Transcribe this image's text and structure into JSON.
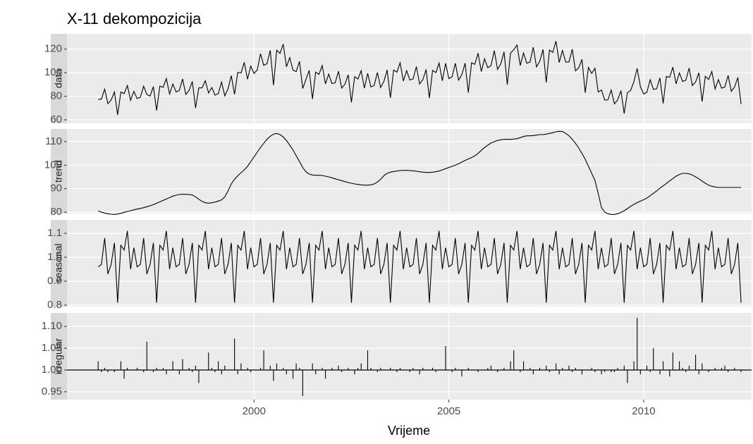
{
  "chart_data": {
    "type": "facets",
    "title": "X-11 dekompozicija",
    "x_label": "Vrijeme",
    "xlim": [
      1995.2,
      2012.77
    ],
    "xticks": [
      2000,
      2005,
      2010
    ],
    "grid": true,
    "color": "#000000",
    "panel_color": "#ebebeb",
    "strip_color": "#d9d9d9",
    "x": [
      1996,
      1996.083,
      1996.167,
      1996.25,
      1996.333,
      1996.417,
      1996.5,
      1996.583,
      1996.667,
      1996.75,
      1996.833,
      1996.917,
      1997,
      1997.083,
      1997.167,
      1997.25,
      1997.333,
      1997.417,
      1997.5,
      1997.583,
      1997.667,
      1997.75,
      1997.833,
      1997.917,
      1998,
      1998.083,
      1998.167,
      1998.25,
      1998.333,
      1998.417,
      1998.5,
      1998.583,
      1998.667,
      1998.75,
      1998.833,
      1998.917,
      1999,
      1999.083,
      1999.167,
      1999.25,
      1999.333,
      1999.417,
      1999.5,
      1999.583,
      1999.667,
      1999.75,
      1999.833,
      1999.917,
      2000,
      2000.083,
      2000.167,
      2000.25,
      2000.333,
      2000.417,
      2000.5,
      2000.583,
      2000.667,
      2000.75,
      2000.833,
      2000.917,
      2001,
      2001.083,
      2001.167,
      2001.25,
      2001.333,
      2001.417,
      2001.5,
      2001.583,
      2001.667,
      2001.75,
      2001.833,
      2001.917,
      2002,
      2002.083,
      2002.167,
      2002.25,
      2002.333,
      2002.417,
      2002.5,
      2002.583,
      2002.667,
      2002.75,
      2002.833,
      2002.917,
      2003,
      2003.083,
      2003.167,
      2003.25,
      2003.333,
      2003.417,
      2003.5,
      2003.583,
      2003.667,
      2003.75,
      2003.833,
      2003.917,
      2004,
      2004.083,
      2004.167,
      2004.25,
      2004.333,
      2004.417,
      2004.5,
      2004.583,
      2004.667,
      2004.75,
      2004.833,
      2004.917,
      2005,
      2005.083,
      2005.167,
      2005.25,
      2005.333,
      2005.417,
      2005.5,
      2005.583,
      2005.667,
      2005.75,
      2005.833,
      2005.917,
      2006,
      2006.083,
      2006.167,
      2006.25,
      2006.333,
      2006.417,
      2006.5,
      2006.583,
      2006.667,
      2006.75,
      2006.833,
      2006.917,
      2007,
      2007.083,
      2007.167,
      2007.25,
      2007.333,
      2007.417,
      2007.5,
      2007.583,
      2007.667,
      2007.75,
      2007.833,
      2007.917,
      2008,
      2008.083,
      2008.167,
      2008.25,
      2008.333,
      2008.417,
      2008.5,
      2008.583,
      2008.667,
      2008.75,
      2008.833,
      2008.917,
      2009,
      2009.083,
      2009.167,
      2009.25,
      2009.333,
      2009.417,
      2009.5,
      2009.583,
      2009.667,
      2009.75,
      2009.833,
      2009.917,
      2010,
      2010.083,
      2010.167,
      2010.25,
      2010.333,
      2010.417,
      2010.5,
      2010.583,
      2010.667,
      2010.75,
      2010.833,
      2010.917,
      2011,
      2011.083,
      2011.167,
      2011.25,
      2011.333,
      2011.417,
      2011.5,
      2011.583,
      2011.667,
      2011.75,
      2011.833,
      2011.917,
      2012,
      2012.083,
      2012.167,
      2012.25,
      2012.333,
      2012.417,
      2012.5
    ],
    "facets": [
      {
        "name": "data",
        "type": "line",
        "ylim": [
          57,
          133
        ],
        "yticks": [
          60,
          80,
          100,
          120
        ],
        "values": [
          77.3,
          77.6,
          86.0,
          73.7,
          76.7,
          83.7,
          64.2,
          83.5,
          82.3,
          89.1,
          76.6,
          84.2,
          78.0,
          79.2,
          88.5,
          81.5,
          80.2,
          88.2,
          67.9,
          88.6,
          87.6,
          95.0,
          81.9,
          90.3,
          83.7,
          84.9,
          94.6,
          81.5,
          84.9,
          92.5,
          70.1,
          87.1,
          87.1,
          93.2,
          82.8,
          87.4,
          80.9,
          82.2,
          92.0,
          80.4,
          86.3,
          97.5,
          81.6,
          100.3,
          99.7,
          108.8,
          94.5,
          105.6,
          99.4,
          102.3,
          116.1,
          106.2,
          107.7,
          119.0,
          89.4,
          119.2,
          116.4,
          124.3,
          105.0,
          112.8,
          102.2,
          100.9,
          109.6,
          86.6,
          94.3,
          102.0,
          77.6,
          100.5,
          98.6,
          106.1,
          90.5,
          98.8,
          90.8,
          91.4,
          101.3,
          86.9,
          90.2,
          98.2,
          74.8,
          96.6,
          94.6,
          101.7,
          86.9,
          99.5,
          87.9,
          89.2,
          100.2,
          87.4,
          92.6,
          102.3,
          78.6,
          102.2,
          100.4,
          108.4,
          92.9,
          101.7,
          93.8,
          94.7,
          105.2,
          90.4,
          94.1,
          102.7,
          78.5,
          101.9,
          100.1,
          108.2,
          93.1,
          108.0,
          95.0,
          96.5,
          108.0,
          93.6,
          98.3,
          108.1,
          83.1,
          108.4,
          107.1,
          116.6,
          101.0,
          111.8,
          104.2,
          106.1,
          118.8,
          102.8,
          107.5,
          117.7,
          89.9,
          116.6,
          119.6,
          123.5,
          106.1,
          116.7,
          108.0,
          109.1,
          121.6,
          104.9,
          109.6,
          119.8,
          91.7,
          119.2,
          117.2,
          126.8,
          108.7,
          118.9,
          109.0,
          109.1,
          119.9,
          101.6,
          104.1,
          111.3,
          83.0,
          104.5,
          99.4,
          103.8,
          83.6,
          85.3,
          76.8,
          76.9,
          85.3,
          73.5,
          76.9,
          84.7,
          65.3,
          83.0,
          85.0,
          92.5,
          103.6,
          88.1,
          81.9,
          83.4,
          94.0,
          85.9,
          86.3,
          95.6,
          73.9,
          96.8,
          96.1,
          104.7,
          90.5,
          99.8,
          92.6,
          93.6,
          104.0,
          89.1,
          92.2,
          99.9,
          75.5,
          96.9,
          94.2,
          101.0,
          86.2,
          94.1,
          86.9,
          87.8,
          97.7,
          84.2,
          87.8,
          95.9,
          73.3
        ]
      },
      {
        "name": "trend",
        "type": "line",
        "ylim": [
          79.4,
          115.4
        ],
        "yticks": [
          80,
          90,
          100,
          110
        ],
        "values": [
          80.5,
          80.0,
          79.6,
          79.3,
          79.1,
          79.0,
          79.2,
          79.5,
          79.9,
          80.3,
          80.6,
          81.0,
          81.3,
          81.6,
          81.9,
          82.3,
          82.7,
          83.2,
          83.8,
          84.4,
          85.0,
          85.6,
          86.2,
          86.8,
          87.2,
          87.5,
          87.6,
          87.6,
          87.5,
          87.3,
          86.5,
          85.5,
          84.6,
          84.0,
          83.8,
          84.0,
          84.3,
          84.7,
          85.2,
          86.5,
          89.0,
          92.0,
          94.0,
          95.5,
          96.8,
          98.0,
          99.5,
          101.5,
          103.5,
          105.5,
          107.5,
          109.3,
          111.0,
          112.3,
          113.2,
          113.5,
          113.0,
          112.0,
          110.5,
          108.5,
          106.5,
          104.0,
          101.5,
          99.0,
          97.2,
          96.2,
          95.8,
          95.7,
          95.7,
          95.6,
          95.3,
          95.0,
          94.6,
          94.2,
          93.8,
          93.4,
          93.0,
          92.6,
          92.3,
          92.0,
          91.8,
          91.6,
          91.5,
          91.5,
          91.6,
          92.0,
          92.8,
          94.0,
          95.5,
          96.5,
          97.0,
          97.3,
          97.5,
          97.7,
          97.8,
          97.8,
          97.7,
          97.6,
          97.4,
          97.2,
          97.0,
          96.9,
          96.9,
          97.0,
          97.2,
          97.5,
          98.0,
          98.5,
          99.0,
          99.5,
          100.0,
          100.6,
          101.3,
          102.0,
          102.6,
          103.2,
          104.0,
          105.0,
          106.3,
          107.5,
          108.5,
          109.4,
          110.0,
          110.5,
          110.8,
          111.0,
          111.0,
          111.0,
          111.1,
          111.3,
          111.7,
          112.2,
          112.5,
          112.5,
          112.6,
          112.8,
          113.0,
          113.0,
          113.2,
          113.5,
          113.8,
          114.2,
          114.4,
          114.3,
          113.5,
          112.5,
          111.0,
          109.3,
          107.3,
          105.0,
          102.5,
          99.5,
          96.5,
          93.5,
          88.0,
          82.0,
          80.0,
          79.3,
          79.0,
          79.0,
          79.3,
          79.9,
          80.6,
          81.5,
          82.5,
          83.3,
          84.0,
          84.7,
          85.3,
          86.0,
          87.0,
          88.0,
          89.0,
          90.2,
          91.2,
          92.2,
          93.3,
          94.3,
          95.3,
          96.0,
          96.5,
          96.5,
          96.3,
          95.8,
          95.0,
          94.2,
          93.2,
          92.3,
          91.5,
          91.0,
          90.7,
          90.5,
          90.5,
          90.5,
          90.5,
          90.5,
          90.5,
          90.5,
          90.5
        ]
      },
      {
        "name": "seasonal",
        "type": "line",
        "ylim": [
          0.794,
          1.156
        ],
        "yticks": [
          1.1,
          {
            "value": 1,
            "label": "1.0"
          },
          0.9,
          0.8
        ],
        "values": [
          0.96,
          0.97,
          1.08,
          0.93,
          0.97,
          1.06,
          0.81,
          1.05,
          1.03,
          1.11,
          0.95,
          1.04,
          0.96,
          0.97,
          1.08,
          0.93,
          0.97,
          1.06,
          0.81,
          1.05,
          1.03,
          1.11,
          0.95,
          1.04,
          0.96,
          0.97,
          1.08,
          0.93,
          0.97,
          1.06,
          0.81,
          1.05,
          1.03,
          1.11,
          0.95,
          1.04,
          0.96,
          0.97,
          1.08,
          0.93,
          0.97,
          1.06,
          0.81,
          1.05,
          1.03,
          1.11,
          0.95,
          1.04,
          0.96,
          0.97,
          1.08,
          0.93,
          0.97,
          1.06,
          0.81,
          1.05,
          1.03,
          1.11,
          0.95,
          1.04,
          0.96,
          0.97,
          1.08,
          0.93,
          0.97,
          1.06,
          0.81,
          1.05,
          1.03,
          1.11,
          0.95,
          1.04,
          0.96,
          0.97,
          1.08,
          0.93,
          0.97,
          1.06,
          0.81,
          1.05,
          1.03,
          1.11,
          0.95,
          1.04,
          0.96,
          0.97,
          1.08,
          0.93,
          0.97,
          1.06,
          0.81,
          1.05,
          1.03,
          1.11,
          0.95,
          1.04,
          0.96,
          0.97,
          1.08,
          0.93,
          0.97,
          1.06,
          0.81,
          1.05,
          1.03,
          1.11,
          0.95,
          1.04,
          0.96,
          0.97,
          1.08,
          0.93,
          0.97,
          1.06,
          0.81,
          1.05,
          1.03,
          1.11,
          0.95,
          1.04,
          0.96,
          0.97,
          1.08,
          0.93,
          0.97,
          1.06,
          0.81,
          1.05,
          1.03,
          1.11,
          0.95,
          1.04,
          0.96,
          0.97,
          1.08,
          0.93,
          0.97,
          1.06,
          0.81,
          1.05,
          1.03,
          1.11,
          0.95,
          1.04,
          0.96,
          0.97,
          1.08,
          0.93,
          0.97,
          1.06,
          0.81,
          1.05,
          1.03,
          1.11,
          0.95,
          1.04,
          0.96,
          0.97,
          1.08,
          0.93,
          0.97,
          1.06,
          0.81,
          1.05,
          1.03,
          1.11,
          0.95,
          1.04,
          0.96,
          0.97,
          1.08,
          0.93,
          0.97,
          1.06,
          0.81,
          1.05,
          1.03,
          1.11,
          0.95,
          1.04,
          0.96,
          0.97,
          1.08,
          0.93,
          0.97,
          1.06,
          0.81,
          1.05,
          1.03,
          1.11,
          0.95,
          1.04,
          0.96,
          0.97,
          1.08,
          0.93,
          0.97,
          1.06,
          0.81
        ]
      },
      {
        "name": "irregular",
        "type": "bar",
        "baseline": 1,
        "ylim": [
          0.932,
          1.131
        ],
        "yticks": [
          {
            "value": 1.1,
            "label": "1.10"
          },
          1.05,
          {
            "value": 1,
            "label": "1.00"
          },
          0.95
        ],
        "values": [
          1.02,
          0.995,
          1.005,
          0.995,
          1.0,
          0.995,
          1.0,
          1.02,
          0.98,
          1.005,
          1.0,
          1.0,
          1.005,
          1.0,
          0.995,
          1.065,
          1.0,
          0.995,
          1.005,
          1.0,
          1.005,
          0.99,
          1.0,
          1.02,
          1.0,
          0.99,
          1.025,
          1.0,
          1.005,
          0.995,
          1.01,
          0.97,
          1.0,
          1.0,
          1.04,
          1.005,
          0.995,
          1.02,
          0.99,
          1.01,
          1.0,
          1.0,
          1.072,
          0.99,
          1.015,
          1.0,
          1.005,
          0.995,
          1.0,
          1.0,
          1.005,
          1.045,
          1.0,
          1.01,
          0.975,
          1.015,
          1.0,
          1.005,
          0.99,
          1.0,
          0.98,
          1.015,
          1.005,
          0.94,
          1.0,
          1.0,
          1.015,
          0.99,
          1.0,
          1.005,
          0.98,
          1.0,
          1.005,
          1.0,
          1.01,
          0.995,
          1.0,
          1.005,
          1.0,
          0.99,
          1.005,
          1.015,
          1.0,
          1.045,
          1.005,
          1.0,
          0.995,
          1.005,
          1.0,
          1.0,
          1.005,
          1.0,
          0.995,
          1.005,
          1.0,
          1.0,
          0.995,
          1.005,
          1.0,
          0.99,
          1.005,
          1.0,
          1.0,
          1.005,
          0.995,
          1.0,
          1.0,
          1.055,
          1.0,
          0.995,
          1.005,
          1.0,
          0.985,
          1.0,
          1.005,
          1.0,
          1.0,
          0.995,
          1.0,
          1.0,
          1.005,
          1.01,
          1.0,
          0.995,
          1.0,
          1.005,
          1.0,
          1.02,
          1.045,
          1.0,
          0.995,
          1.02,
          1.0,
          1.005,
          0.99,
          1.0,
          1.005,
          1.0,
          1.01,
          0.995,
          1.0,
          1.015,
          0.99,
          1.005,
          1.0,
          1.01,
          0.995,
          1.005,
          1.0,
          0.99,
          1.0,
          1.0,
          1.005,
          0.995,
          1.0,
          0.99,
          0.995,
          1.0,
          0.995,
          0.995,
          1.005,
          1.0,
          1.01,
          0.97,
          1.0,
          1.02,
          1.12,
          0.99,
          1.0,
          1.01,
          0.995,
          1.05,
          1.0,
          0.99,
          1.02,
          1.0,
          0.985,
          1.04,
          1.0,
          1.02,
          1.005,
          0.995,
          1.01,
          1.0,
          1.035,
          0.99,
          1.015,
          1.0,
          0.995,
          1.0,
          1.005,
          1.0,
          1.005,
          1.01,
          0.995,
          1.0,
          1.005,
          1.0,
          0.995
        ]
      }
    ]
  }
}
